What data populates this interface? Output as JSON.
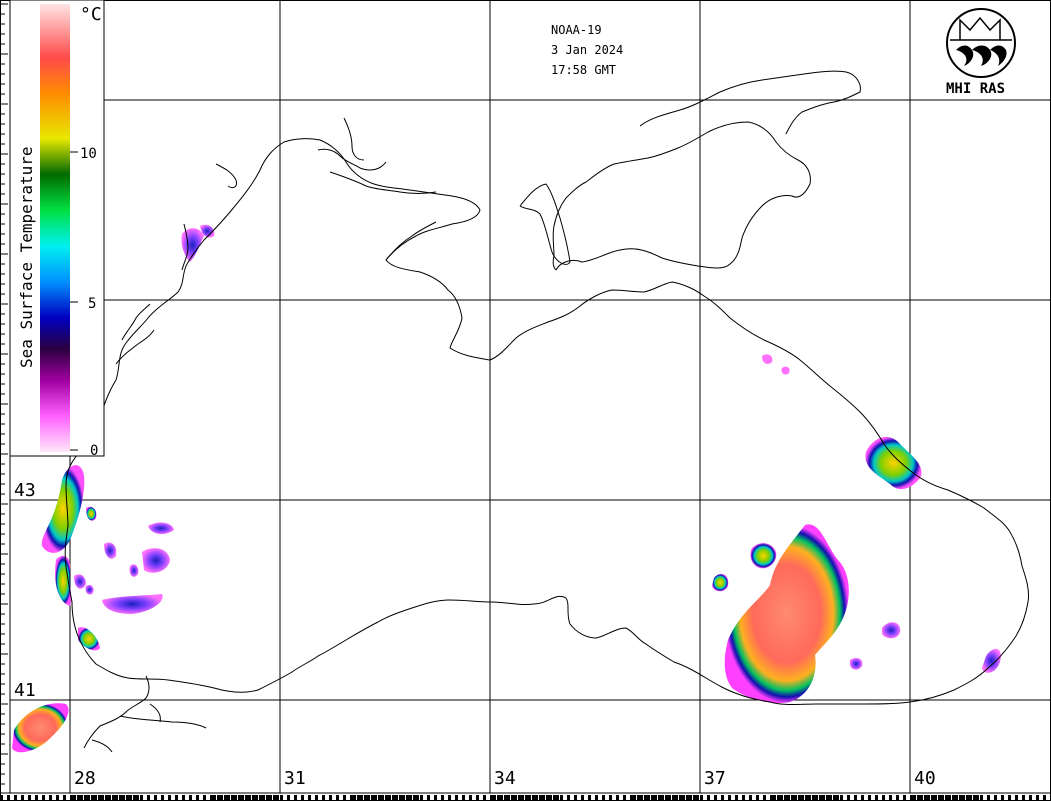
{
  "header": {
    "satellite": "NOAA-19",
    "date": "3 Jan 2024",
    "time": "17:58 GMT"
  },
  "logo": {
    "text": "MHI RAS",
    "icon": "mhi-ras-logo-icon"
  },
  "colorbar": {
    "title": "Sea Surface Temperature",
    "unit": "°C",
    "ticks": [
      "0",
      "5",
      "10"
    ],
    "range": [
      0,
      15
    ],
    "colors": [
      "#ffe6f6",
      "#ff44ff",
      "#3b0050",
      "#1a1aa8",
      "#00a8ff",
      "#00e8e8",
      "#00e000",
      "#007000",
      "#e8e800",
      "#ff8000",
      "#ff5050",
      "#ffd8d8"
    ]
  },
  "axes": {
    "longitude_labels": [
      "28",
      "31",
      "34",
      "37",
      "40"
    ],
    "latitude_labels": [
      "43",
      "41"
    ]
  },
  "colors": {
    "land": "#ffffff",
    "coastline": "#000000",
    "warm_patch": "#ff7f6a",
    "cool_edge": "#0000b0",
    "magenta_edge": "#ff40ff"
  }
}
